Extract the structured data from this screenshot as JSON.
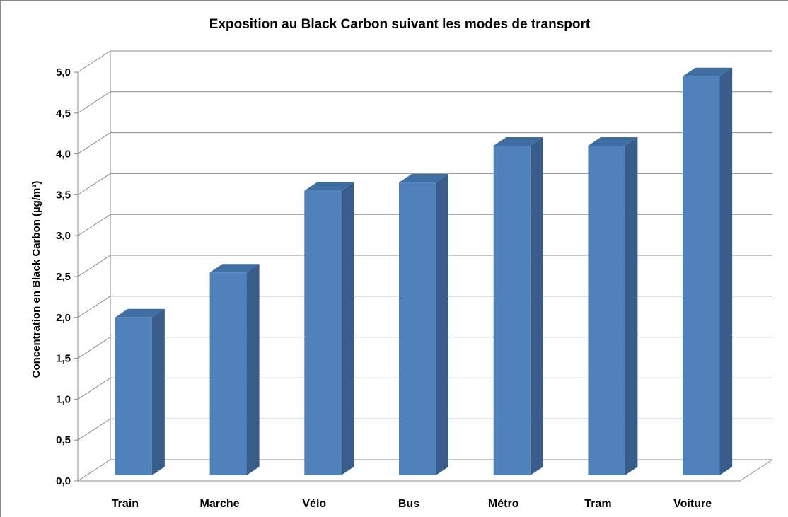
{
  "chart_data": {
    "type": "bar",
    "style": "3d-column",
    "title": "Exposition au Black Carbon suivant les modes de transport",
    "xlabel": "",
    "ylabel": "Concentration en Black Carbon (µg/m³)",
    "categories": [
      "Train",
      "Marche",
      "Vélo",
      "Bus",
      "Métro",
      "Tram",
      "Voiture"
    ],
    "values": [
      2.0,
      2.55,
      3.55,
      3.65,
      4.1,
      4.1,
      4.95
    ],
    "ylim": [
      0,
      5
    ],
    "yticks": [
      "0,0",
      "0,5",
      "1,0",
      "1,5",
      "2,0",
      "2,5",
      "3,0",
      "3,5",
      "4,0",
      "4,5",
      "5,0"
    ],
    "grid": true,
    "legend": "none",
    "colors": {
      "bar_front": "#4f81bd",
      "bar_side": "#385d8a",
      "bar_top": "#3f6ea3",
      "grid": "#8c8c8c"
    }
  }
}
